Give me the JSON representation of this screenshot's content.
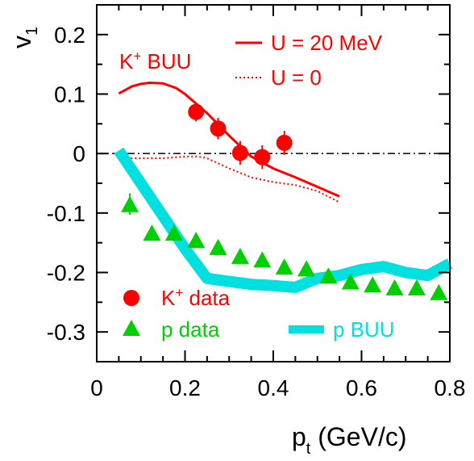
{
  "chart_data": {
    "type": "scatter",
    "xlim": [
      0,
      0.8
    ],
    "ylim": [
      -0.35,
      0.25
    ],
    "x_ticks": [
      "0",
      "0.2",
      "0.4",
      "0.6",
      "0.8"
    ],
    "y_ticks": [
      "0.2",
      "0.1",
      "0",
      "-0.1",
      "-0.2",
      "-0.3"
    ],
    "x_tick_values": [
      0,
      0.2,
      0.4,
      0.6,
      0.8
    ],
    "y_tick_values": [
      0.2,
      0.1,
      0,
      -0.1,
      -0.2,
      -0.3
    ],
    "xlabel": {
      "base": "p",
      "sub": "t",
      "rest": " (GeV/c)"
    },
    "ylabel": {
      "base": "v",
      "sub": "1"
    },
    "series": [
      {
        "name": "U = 20 MeV",
        "kind": "solid-line",
        "color": "#ff0000",
        "x": [
          0.05,
          0.08,
          0.1,
          0.12,
          0.15,
          0.18,
          0.2,
          0.25,
          0.3,
          0.35,
          0.4,
          0.45,
          0.5,
          0.55
        ],
        "y": [
          0.101,
          0.113,
          0.117,
          0.119,
          0.118,
          0.11,
          0.1,
          0.068,
          0.03,
          -0.005,
          -0.025,
          -0.04,
          -0.056,
          -0.072
        ]
      },
      {
        "name": "U = 0",
        "kind": "dotted-line",
        "color": "#ff0000",
        "x": [
          0.05,
          0.1,
          0.15,
          0.2,
          0.23,
          0.25,
          0.3,
          0.35,
          0.4,
          0.45,
          0.5,
          0.55
        ],
        "y": [
          -0.008,
          -0.008,
          -0.008,
          -0.005,
          -0.005,
          -0.008,
          -0.025,
          -0.04,
          -0.048,
          -0.053,
          -0.063,
          -0.082
        ]
      },
      {
        "name": "p BUU",
        "kind": "band",
        "color": "#00e0e0",
        "x": [
          0.05,
          0.1,
          0.15,
          0.2,
          0.25,
          0.3,
          0.35,
          0.4,
          0.45,
          0.5,
          0.55,
          0.6,
          0.65,
          0.7,
          0.75,
          0.8
        ],
        "y": [
          0.005,
          -0.05,
          -0.105,
          -0.16,
          -0.21,
          -0.215,
          -0.22,
          -0.222,
          -0.225,
          -0.21,
          -0.205,
          -0.195,
          -0.19,
          -0.2,
          -0.205,
          -0.185
        ]
      },
      {
        "name": "K+ data",
        "kind": "circle-points",
        "color": "#ff0000",
        "x": [
          0.225,
          0.275,
          0.325,
          0.375,
          0.425
        ],
        "y": [
          0.07,
          0.042,
          0.001,
          -0.006,
          0.018
        ],
        "err": [
          0.016,
          0.018,
          0.02,
          0.02,
          0.02
        ]
      },
      {
        "name": "p data",
        "kind": "triangle-points",
        "color": "#00d000",
        "x": [
          0.075,
          0.125,
          0.175,
          0.225,
          0.275,
          0.325,
          0.375,
          0.425,
          0.475,
          0.525,
          0.575,
          0.625,
          0.675,
          0.725,
          0.775
        ],
        "y": [
          -0.085,
          -0.133,
          -0.133,
          -0.145,
          -0.157,
          -0.172,
          -0.178,
          -0.19,
          -0.193,
          -0.205,
          -0.215,
          -0.22,
          -0.225,
          -0.225,
          -0.233
        ],
        "err": [
          0.018,
          0,
          0,
          0,
          0,
          0,
          0,
          0,
          0,
          0,
          0,
          0,
          0,
          0,
          0
        ]
      }
    ],
    "annotations": {
      "kbuu_label": "K",
      "kbuu_sup": "+",
      "kbuu_rest": " BUU",
      "legend_u20": "U = 20 MeV",
      "legend_u0": "U = 0",
      "legend_kdata_base": "K",
      "legend_kdata_sup": "+",
      "legend_kdata_rest": " data",
      "legend_pdata": "p data",
      "legend_pbuu": "p BUU"
    },
    "zero_line": "dash-dot",
    "grid": false
  }
}
